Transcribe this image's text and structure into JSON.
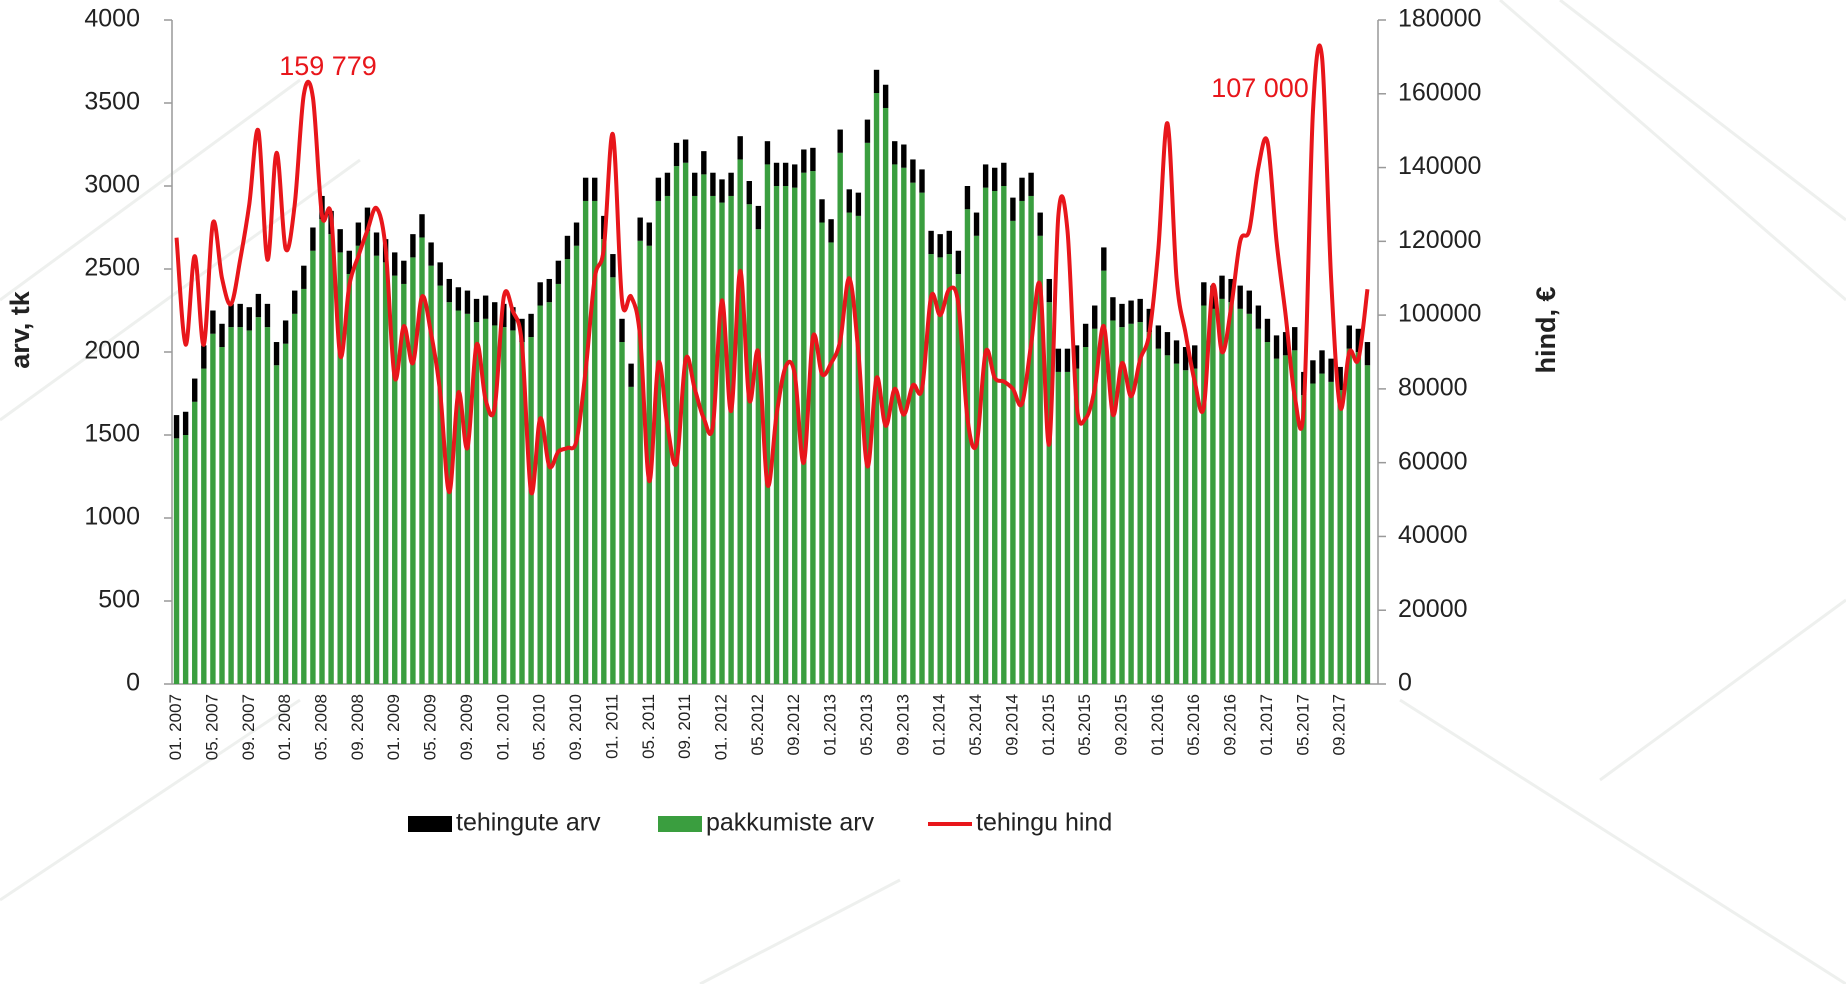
{
  "chart_data": {
    "type": "bar",
    "categories": [
      "01. 2007",
      null,
      null,
      null,
      "05. 2007",
      null,
      null,
      null,
      "09. 2007",
      null,
      null,
      null,
      "01. 2008",
      null,
      null,
      null,
      "05. 2008",
      null,
      null,
      null,
      "09. 2008",
      null,
      null,
      null,
      "01. 2009",
      null,
      null,
      null,
      "05. 2009",
      null,
      null,
      null,
      "09. 2009",
      null,
      null,
      null,
      "01. 2010",
      null,
      null,
      null,
      "05. 2010",
      null,
      null,
      null,
      "09. 2010",
      null,
      null,
      null,
      "01. 2011",
      null,
      null,
      null,
      "05. 2011",
      null,
      null,
      null,
      "09. 2011",
      null,
      null,
      null,
      "01. 2012",
      null,
      null,
      null,
      "05.2012",
      null,
      null,
      null,
      "09.2012",
      null,
      null,
      null,
      "01.2013",
      null,
      null,
      null,
      "05.2013",
      null,
      null,
      null,
      "09.2013",
      null,
      null,
      null,
      "01.2014",
      null,
      null,
      null,
      "05.2014",
      null,
      null,
      null,
      "09.2014",
      null,
      null,
      null,
      "01.2015",
      null,
      null,
      null,
      "05.2015",
      null,
      null,
      null,
      "09.2015",
      null,
      null,
      null,
      "01.2016",
      null,
      null,
      null,
      "05.2016",
      null,
      null,
      null,
      "09.2016",
      null,
      null,
      null,
      "01.2017",
      null,
      null,
      null,
      "05.2017",
      null,
      null,
      null,
      "09.2017",
      null,
      null,
      null
    ],
    "series": [
      {
        "name": "tehingute arv",
        "type": "bar",
        "color": "#000000",
        "values": [
          140,
          140,
          140,
          140,
          140,
          140,
          140,
          140,
          140,
          140,
          140,
          140,
          140,
          140,
          140,
          140,
          140,
          140,
          140,
          140,
          140,
          140,
          140,
          140,
          140,
          140,
          140,
          140,
          140,
          140,
          140,
          140,
          140,
          140,
          140,
          140,
          140,
          140,
          140,
          140,
          140,
          140,
          140,
          140,
          140,
          140,
          140,
          140,
          140,
          140,
          140,
          140,
          140,
          140,
          140,
          140,
          140,
          140,
          140,
          140,
          140,
          140,
          140,
          140,
          140,
          140,
          140,
          140,
          140,
          140,
          140,
          140,
          140,
          140,
          140,
          140,
          140,
          140,
          140,
          140,
          140,
          140,
          140,
          140,
          140,
          140,
          140,
          140,
          140,
          140,
          140,
          140,
          140,
          140,
          140,
          140,
          140,
          140,
          140,
          140,
          140,
          140,
          140,
          140,
          140,
          140,
          140,
          140,
          140,
          140,
          140,
          140,
          140,
          140,
          140,
          140,
          140,
          140,
          140,
          140,
          140,
          140,
          140,
          140,
          140,
          140,
          140,
          140,
          140,
          140,
          140,
          140
        ]
      },
      {
        "name": "pakkumiste arv",
        "type": "bar",
        "color": "#3a9e3f",
        "values": [
          1480,
          1500,
          1700,
          1900,
          2110,
          2030,
          2150,
          2150,
          2130,
          2210,
          2150,
          1920,
          2050,
          2230,
          2380,
          2610,
          2800,
          2710,
          2600,
          2470,
          2640,
          2730,
          2580,
          2540,
          2460,
          2410,
          2570,
          2690,
          2520,
          2400,
          2300,
          2250,
          2230,
          2180,
          2200,
          2160,
          2150,
          2130,
          2060,
          2090,
          2280,
          2300,
          2410,
          2560,
          2640,
          2910,
          2910,
          2680,
          2450,
          2060,
          1790,
          2670,
          2640,
          2910,
          2940,
          3120,
          3140,
          2940,
          3070,
          2940,
          2900,
          2940,
          3160,
          2890,
          2740,
          3130,
          3000,
          3000,
          2990,
          3080,
          3090,
          2780,
          2660,
          3200,
          2840,
          2820,
          3260,
          3560,
          3470,
          3130,
          3110,
          3020,
          2960,
          2590,
          2570,
          2590,
          2470,
          2860,
          2700,
          2990,
          2970,
          3000,
          2790,
          2910,
          2940,
          2700,
          2300,
          1880,
          1880,
          1900,
          2030,
          2140,
          2490,
          2190,
          2150,
          2170,
          2180,
          2120,
          2020,
          1980,
          1930,
          1890,
          1900,
          2280,
          2260,
          2320,
          2300,
          2260,
          2230,
          2140,
          2060,
          1960,
          1980,
          2010,
          1740,
          1810,
          1870,
          1820,
          1770,
          2020,
          2000,
          1920
        ]
      },
      {
        "name": "tehingu hind",
        "type": "line",
        "axis": "y2",
        "color": "#e8161b",
        "values": [
          121000,
          92000,
          116000,
          92000,
          125000,
          110000,
          103000,
          115000,
          130000,
          150000,
          115000,
          144000,
          118000,
          130000,
          159779,
          159000,
          127000,
          127000,
          89000,
          108000,
          116000,
          123000,
          129000,
          118000,
          83000,
          97000,
          87000,
          105000,
          95000,
          79000,
          52000,
          79000,
          64000,
          92000,
          77000,
          75000,
          105000,
          101000,
          92000,
          52000,
          72000,
          59000,
          63000,
          64000,
          66000,
          85000,
          110000,
          118000,
          149000,
          104000,
          105000,
          94000,
          55000,
          87000,
          70000,
          60000,
          88000,
          80000,
          72000,
          70000,
          104000,
          74000,
          112000,
          77000,
          90000,
          54000,
          73000,
          86000,
          84000,
          60000,
          94000,
          84000,
          87000,
          93000,
          110000,
          90000,
          59000,
          83000,
          70000,
          80000,
          73000,
          81000,
          80000,
          105000,
          100000,
          107000,
          103000,
          72000,
          65000,
          90000,
          83000,
          82000,
          80000,
          76000,
          92000,
          108000,
          65000,
          127000,
          123000,
          76000,
          72000,
          80000,
          97000,
          73000,
          87000,
          78000,
          88000,
          95000,
          118000,
          152000,
          110000,
          95000,
          82000,
          75000,
          108000,
          90000,
          102000,
          120000,
          123000,
          140000,
          147000,
          120000,
          100000,
          78000,
          75000,
          155000,
          170000,
          110000,
          75000,
          90000,
          88000,
          107000
        ]
      }
    ],
    "ylabel": "arv, tk",
    "y2label": "hind, €",
    "ylim": [
      0,
      4000
    ],
    "yticks": [
      0,
      500,
      1000,
      1500,
      2000,
      2500,
      3000,
      3500,
      4000
    ],
    "y2lim": [
      0,
      180000
    ],
    "y2ticks": [
      0,
      20000,
      40000,
      60000,
      80000,
      100000,
      120000,
      140000,
      160000,
      180000
    ],
    "annotations": [
      "159 779",
      "107 000"
    ],
    "legend": "bottom"
  }
}
